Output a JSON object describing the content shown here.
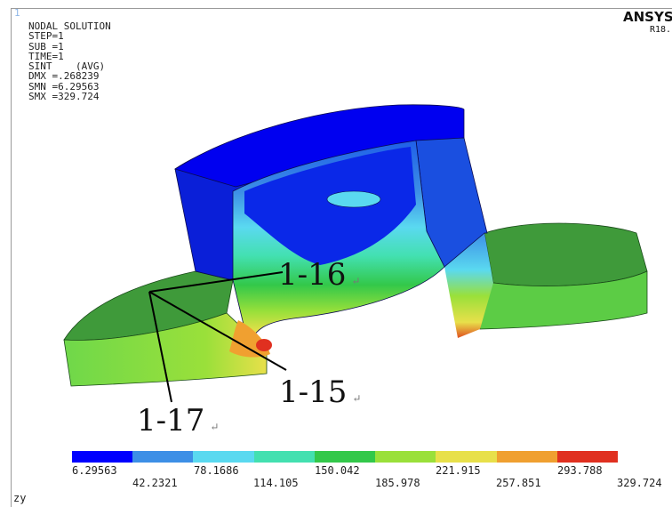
{
  "window": {
    "number": "1"
  },
  "info": {
    "title": "NODAL SOLUTION",
    "lines": [
      "STEP=1",
      "SUB =1",
      "TIME=1",
      "SINT    (AVG)",
      "DMX =.268239",
      "SMN =6.29563",
      "SMX =329.724"
    ]
  },
  "brand": {
    "name": "ANSYS",
    "release": "R18."
  },
  "callouts": {
    "c16": "1-16",
    "c15": "1-15",
    "c17": "1-17",
    "para_mark": "↵"
  },
  "legend": {
    "colors": [
      "#0000ff",
      "#3d8fe6",
      "#5ad9f0",
      "#43e0b0",
      "#33c84a",
      "#9ae03a",
      "#e8e04a",
      "#f0a030",
      "#e03020"
    ],
    "ticks_upper": [
      "6.29563",
      "78.1686",
      "150.042",
      "221.915",
      "293.788"
    ],
    "ticks_lower": [
      "42.2321",
      "114.105",
      "185.978",
      "257.851",
      "329.724"
    ]
  },
  "view": {
    "axes": "zy"
  }
}
